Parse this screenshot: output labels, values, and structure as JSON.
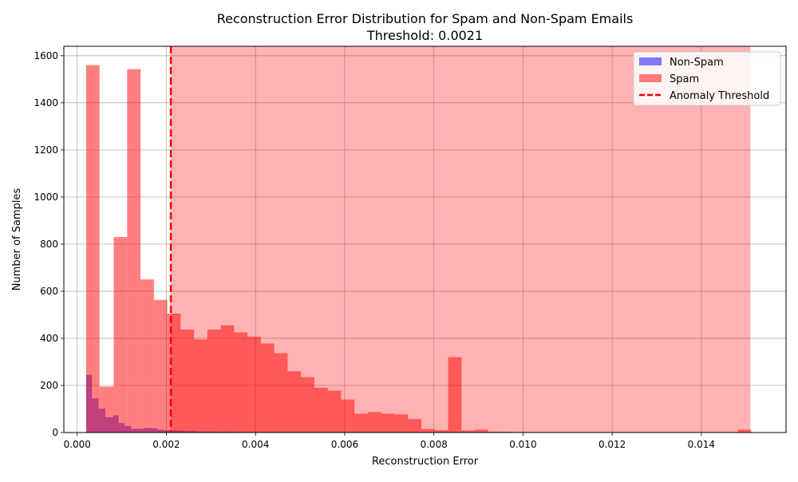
{
  "chart_data": {
    "type": "bar",
    "title_line1": "Reconstruction Error Distribution for Spam and Non-Spam Emails",
    "title_line2": "Threshold: 0.0021",
    "xlabel": "Reconstruction Error",
    "ylabel": "Number of Samples",
    "xlim": [
      -0.0003,
      0.0159
    ],
    "ylim": [
      0,
      1640
    ],
    "grid": true,
    "legend_position": "top-right",
    "x_ticks": [
      0.0,
      0.002,
      0.004,
      0.006,
      0.008,
      0.01,
      0.012,
      0.014
    ],
    "x_tick_labels": [
      "0.000",
      "0.002",
      "0.004",
      "0.006",
      "0.008",
      "0.010",
      "0.012",
      "0.014"
    ],
    "y_ticks": [
      0,
      200,
      400,
      600,
      800,
      1000,
      1200,
      1400,
      1600
    ],
    "y_tick_labels": [
      "0",
      "200",
      "400",
      "600",
      "800",
      "1000",
      "1200",
      "1400",
      "1600"
    ],
    "threshold": 0.0021,
    "shaded_region": {
      "from": 0.0021,
      "to": 0.0151,
      "color": "#ff0000",
      "opacity": 0.3
    },
    "series": [
      {
        "name": "Non-Spam",
        "color": "#0000ff",
        "opacity": 0.5,
        "bins": [
          {
            "x0": 0.0002,
            "x1": 0.00033,
            "count": 245
          },
          {
            "x0": 0.00033,
            "x1": 0.00048,
            "count": 145
          },
          {
            "x0": 0.00048,
            "x1": 0.00063,
            "count": 102
          },
          {
            "x0": 0.00063,
            "x1": 0.0008,
            "count": 65
          },
          {
            "x0": 0.0008,
            "x1": 0.00093,
            "count": 73
          },
          {
            "x0": 0.00093,
            "x1": 0.00106,
            "count": 40
          },
          {
            "x0": 0.00106,
            "x1": 0.00121,
            "count": 28
          },
          {
            "x0": 0.00121,
            "x1": 0.00136,
            "count": 16
          },
          {
            "x0": 0.00136,
            "x1": 0.0015,
            "count": 16
          },
          {
            "x0": 0.0015,
            "x1": 0.00166,
            "count": 20
          },
          {
            "x0": 0.00166,
            "x1": 0.0018,
            "count": 18
          },
          {
            "x0": 0.0018,
            "x1": 0.00194,
            "count": 12
          },
          {
            "x0": 0.00194,
            "x1": 0.0021,
            "count": 10
          },
          {
            "x0": 0.0021,
            "x1": 0.0024,
            "count": 8
          },
          {
            "x0": 0.0024,
            "x1": 0.0027,
            "count": 6
          },
          {
            "x0": 0.0027,
            "x1": 0.003,
            "count": 4
          },
          {
            "x0": 0.003,
            "x1": 0.0036,
            "count": 3
          },
          {
            "x0": 0.0036,
            "x1": 0.0046,
            "count": 2
          }
        ]
      },
      {
        "name": "Spam",
        "color": "#ff0000",
        "opacity": 0.5,
        "bins": [
          {
            "x0": 0.0002,
            "x1": 0.0005,
            "count": 1560
          },
          {
            "x0": 0.0005,
            "x1": 0.00082,
            "count": 195
          },
          {
            "x0": 0.00082,
            "x1": 0.00112,
            "count": 830
          },
          {
            "x0": 0.00112,
            "x1": 0.00142,
            "count": 1543
          },
          {
            "x0": 0.00142,
            "x1": 0.00172,
            "count": 650
          },
          {
            "x0": 0.00172,
            "x1": 0.00202,
            "count": 563
          },
          {
            "x0": 0.00202,
            "x1": 0.00232,
            "count": 505
          },
          {
            "x0": 0.00232,
            "x1": 0.00262,
            "count": 437
          },
          {
            "x0": 0.00262,
            "x1": 0.00292,
            "count": 395
          },
          {
            "x0": 0.00292,
            "x1": 0.00322,
            "count": 437
          },
          {
            "x0": 0.00322,
            "x1": 0.00352,
            "count": 455
          },
          {
            "x0": 0.00352,
            "x1": 0.00382,
            "count": 425
          },
          {
            "x0": 0.00382,
            "x1": 0.00412,
            "count": 407
          },
          {
            "x0": 0.00412,
            "x1": 0.00442,
            "count": 378
          },
          {
            "x0": 0.00442,
            "x1": 0.00472,
            "count": 337
          },
          {
            "x0": 0.00472,
            "x1": 0.00502,
            "count": 260
          },
          {
            "x0": 0.00502,
            "x1": 0.00532,
            "count": 235
          },
          {
            "x0": 0.00532,
            "x1": 0.00562,
            "count": 190
          },
          {
            "x0": 0.00562,
            "x1": 0.00592,
            "count": 178
          },
          {
            "x0": 0.00592,
            "x1": 0.00622,
            "count": 140
          },
          {
            "x0": 0.00622,
            "x1": 0.00652,
            "count": 80
          },
          {
            "x0": 0.00652,
            "x1": 0.00682,
            "count": 87
          },
          {
            "x0": 0.00682,
            "x1": 0.00712,
            "count": 80
          },
          {
            "x0": 0.00712,
            "x1": 0.00742,
            "count": 77
          },
          {
            "x0": 0.00742,
            "x1": 0.00772,
            "count": 57
          },
          {
            "x0": 0.00772,
            "x1": 0.00802,
            "count": 15
          },
          {
            "x0": 0.00802,
            "x1": 0.00832,
            "count": 10
          },
          {
            "x0": 0.00832,
            "x1": 0.00862,
            "count": 320
          },
          {
            "x0": 0.00862,
            "x1": 0.00892,
            "count": 9
          },
          {
            "x0": 0.00892,
            "x1": 0.00922,
            "count": 12
          },
          {
            "x0": 0.00922,
            "x1": 0.00952,
            "count": 4
          },
          {
            "x0": 0.00952,
            "x1": 0.00982,
            "count": 3
          },
          {
            "x0": 0.00982,
            "x1": 0.01012,
            "count": 2
          },
          {
            "x0": 0.01482,
            "x1": 0.01512,
            "count": 12
          }
        ]
      }
    ],
    "legend": [
      {
        "label": "Non-Spam",
        "kind": "patch",
        "color": "#0000ff",
        "opacity": 0.5
      },
      {
        "label": "Spam",
        "kind": "patch",
        "color": "#ff0000",
        "opacity": 0.5
      },
      {
        "label": "Anomaly Threshold",
        "kind": "dashed-line",
        "color": "#ff0000"
      }
    ]
  }
}
